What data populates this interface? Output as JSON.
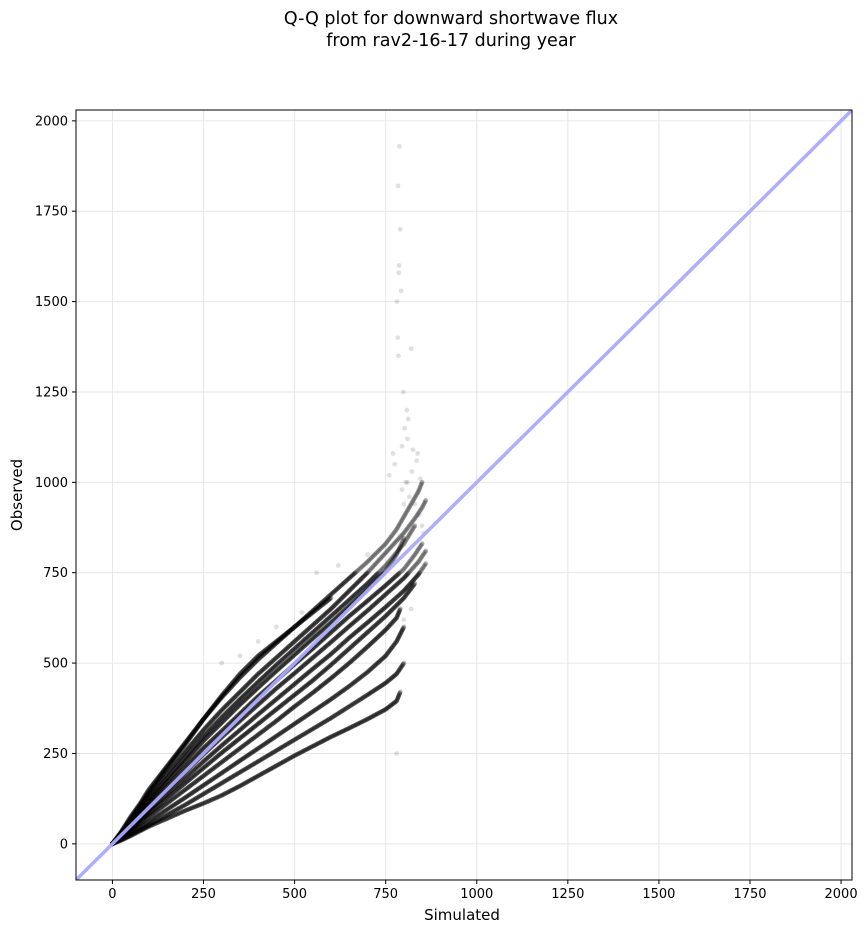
{
  "chart_data": {
    "type": "scatter",
    "title": "Q-Q plot for downward shortwave flux",
    "subtitle": "from rav2-16-17 during year",
    "xlabel": "Simulated",
    "ylabel": "Observed",
    "xlim": [
      -100,
      2030
    ],
    "ylim": [
      -100,
      2030
    ],
    "xticks": [
      0,
      250,
      500,
      750,
      1000,
      1250,
      1500,
      1750,
      2000
    ],
    "yticks": [
      0,
      250,
      500,
      750,
      1000,
      1250,
      1500,
      1750,
      2000
    ],
    "grid": true,
    "reference_line": {
      "type": "1:1",
      "color": "#aaaaff"
    },
    "point_color": "#000000",
    "series": [
      {
        "x": [
          0,
          25,
          50,
          75,
          100,
          150,
          200,
          250,
          300,
          350,
          400,
          450,
          500,
          550,
          600,
          650,
          700,
          750,
          780,
          800,
          820,
          840,
          850
        ],
        "y": [
          0,
          35,
          75,
          110,
          150,
          215,
          280,
          345,
          405,
          460,
          510,
          555,
          600,
          645,
          690,
          735,
          780,
          830,
          870,
          905,
          940,
          975,
          1000
        ]
      },
      {
        "x": [
          0,
          25,
          50,
          75,
          100,
          150,
          200,
          250,
          300,
          350,
          400,
          450,
          500,
          550,
          600,
          650,
          700,
          750,
          800,
          830,
          850,
          860
        ],
        "y": [
          0,
          32,
          68,
          100,
          135,
          195,
          255,
          315,
          370,
          420,
          470,
          515,
          560,
          605,
          650,
          700,
          750,
          805,
          860,
          900,
          930,
          950
        ]
      },
      {
        "x": [
          0,
          25,
          50,
          75,
          100,
          150,
          200,
          250,
          300,
          350,
          400,
          450,
          500,
          550,
          600,
          650,
          700,
          750,
          800,
          830
        ],
        "y": [
          0,
          30,
          60,
          92,
          124,
          182,
          240,
          298,
          350,
          400,
          448,
          495,
          540,
          585,
          630,
          675,
          720,
          770,
          830,
          880
        ]
      },
      {
        "x": [
          0,
          25,
          50,
          75,
          100,
          150,
          200,
          250,
          300,
          350,
          400,
          450,
          500,
          550,
          600,
          650,
          700,
          750,
          780,
          800
        ],
        "y": [
          0,
          28,
          58,
          88,
          118,
          172,
          228,
          285,
          335,
          385,
          432,
          478,
          523,
          568,
          612,
          658,
          705,
          755,
          800,
          845
        ]
      },
      {
        "x": [
          0,
          25,
          50,
          75,
          100,
          150,
          200,
          250,
          300,
          350,
          400,
          450,
          500,
          550,
          600,
          650,
          700,
          750,
          800,
          830,
          850
        ],
        "y": [
          0,
          26,
          52,
          80,
          108,
          160,
          212,
          265,
          312,
          360,
          408,
          452,
          497,
          540,
          585,
          630,
          672,
          715,
          760,
          800,
          830
        ]
      },
      {
        "x": [
          0,
          25,
          50,
          75,
          100,
          150,
          200,
          250,
          300,
          350,
          400,
          450,
          500,
          550,
          600,
          650,
          700,
          750,
          800,
          840,
          860
        ],
        "y": [
          0,
          24,
          48,
          74,
          100,
          150,
          198,
          248,
          295,
          340,
          385,
          430,
          472,
          515,
          558,
          602,
          645,
          690,
          735,
          780,
          810
        ]
      },
      {
        "x": [
          0,
          25,
          50,
          75,
          100,
          150,
          200,
          250,
          300,
          350,
          400,
          450,
          500,
          550,
          600,
          650,
          700,
          750,
          800,
          840,
          860
        ],
        "y": [
          0,
          22,
          45,
          68,
          92,
          138,
          182,
          228,
          272,
          315,
          358,
          400,
          442,
          484,
          525,
          570,
          612,
          655,
          700,
          745,
          775
        ]
      },
      {
        "x": [
          0,
          25,
          50,
          75,
          100,
          150,
          200,
          250,
          300,
          350,
          400,
          450,
          500,
          550,
          600,
          650,
          700,
          750,
          800,
          830
        ],
        "y": [
          0,
          20,
          40,
          62,
          84,
          126,
          168,
          210,
          252,
          292,
          332,
          372,
          412,
          452,
          495,
          540,
          585,
          630,
          680,
          720
        ]
      },
      {
        "x": [
          0,
          25,
          50,
          75,
          100,
          150,
          200,
          250,
          300,
          350,
          400,
          450,
          500,
          550,
          600,
          650,
          700,
          750,
          780,
          790
        ],
        "y": [
          0,
          18,
          36,
          55,
          75,
          112,
          150,
          188,
          226,
          264,
          302,
          340,
          380,
          418,
          458,
          500,
          545,
          592,
          625,
          650
        ]
      },
      {
        "x": [
          0,
          25,
          50,
          75,
          100,
          150,
          200,
          250,
          300,
          350,
          400,
          450,
          500,
          550,
          600,
          650,
          700,
          750,
          780,
          800
        ],
        "y": [
          0,
          15,
          30,
          46,
          62,
          95,
          128,
          162,
          196,
          230,
          264,
          298,
          332,
          366,
          400,
          436,
          475,
          520,
          560,
          600
        ]
      },
      {
        "x": [
          0,
          25,
          50,
          75,
          100,
          150,
          200,
          250,
          300,
          350,
          400,
          450,
          500,
          550,
          600,
          650,
          700,
          750,
          780,
          800
        ],
        "y": [
          0,
          12,
          25,
          38,
          52,
          80,
          108,
          138,
          168,
          198,
          228,
          258,
          288,
          318,
          348,
          380,
          412,
          445,
          470,
          500
        ]
      },
      {
        "x": [
          0,
          25,
          50,
          75,
          100,
          150,
          200,
          250,
          300,
          350,
          400,
          450,
          500,
          550,
          600,
          650,
          700,
          750,
          780,
          790
        ],
        "y": [
          0,
          10,
          22,
          35,
          48,
          70,
          92,
          112,
          134,
          160,
          188,
          216,
          244,
          270,
          296,
          320,
          345,
          372,
          395,
          420
        ]
      },
      {
        "x": [
          0,
          25,
          50,
          75,
          100,
          150,
          200,
          250,
          300,
          350,
          400,
          450,
          500,
          550,
          600
        ],
        "y": [
          0,
          32,
          68,
          105,
          142,
          210,
          275,
          345,
          410,
          470,
          520,
          560,
          600,
          640,
          680
        ]
      }
    ],
    "outliers": {
      "x": [
        788,
        784,
        790,
        787,
        786,
        792,
        781,
        783,
        785,
        820,
        798,
        808,
        802,
        812,
        770,
        760,
        775,
        795,
        810,
        825,
        835,
        845,
        805,
        815,
        830,
        842,
        850,
        855,
        820,
        800,
        560,
        620,
        700,
        450,
        520,
        400,
        300,
        350,
        780,
        795,
        810,
        800,
        822,
        838
      ],
      "y": [
        1930,
        1820,
        1700,
        1600,
        1580,
        1530,
        1500,
        1400,
        1350,
        1370,
        1250,
        1200,
        1150,
        1175,
        1080,
        1020,
        1050,
        1100,
        1120,
        1090,
        1060,
        1010,
        1000,
        960,
        940,
        910,
        880,
        860,
        650,
        620,
        750,
        770,
        800,
        600,
        640,
        560,
        500,
        520,
        250,
        980,
        1000,
        940,
        1030,
        1080
      ]
    }
  }
}
